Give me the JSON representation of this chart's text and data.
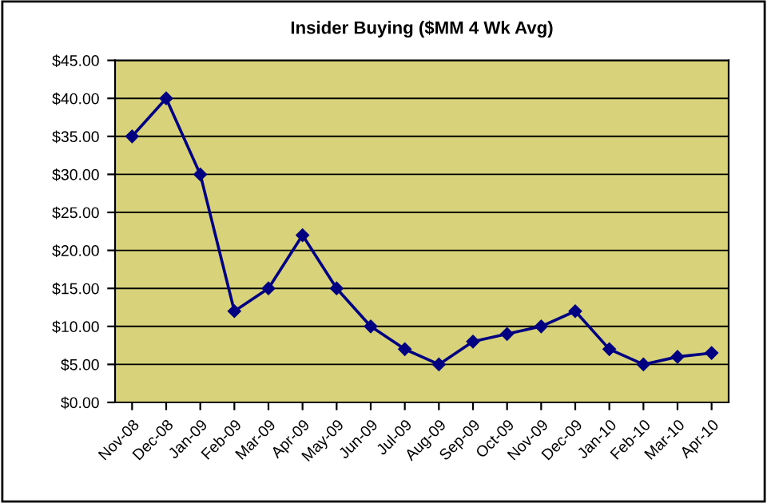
{
  "chart_data": {
    "type": "line",
    "title": "Insider Buying ($MM 4 Wk Avg)",
    "categories": [
      "Nov-08",
      "Dec-08",
      "Jan-09",
      "Feb-09",
      "Mar-09",
      "Apr-09",
      "May-09",
      "Jun-09",
      "Jul-09",
      "Aug-09",
      "Sep-09",
      "Oct-09",
      "Nov-09",
      "Dec-09",
      "Jan-10",
      "Feb-10",
      "Mar-10",
      "Apr-10"
    ],
    "series": [
      {
        "color": "#000080",
        "values": [
          35,
          40,
          30,
          12,
          15,
          22,
          15,
          10,
          7,
          5,
          8,
          9,
          10,
          12,
          7,
          5,
          6,
          6.5
        ]
      }
    ],
    "ylim": [
      0,
      45
    ],
    "yticks": [
      {
        "value": 0,
        "label": "$0.00"
      },
      {
        "value": 5,
        "label": "$5.00"
      },
      {
        "value": 10,
        "label": "$10.00"
      },
      {
        "value": 15,
        "label": "$15.00"
      },
      {
        "value": 20,
        "label": "$20.00"
      },
      {
        "value": 25,
        "label": "$25.00"
      },
      {
        "value": 30,
        "label": "$30.00"
      },
      {
        "value": 35,
        "label": "$35.00"
      },
      {
        "value": 40,
        "label": "$40.00"
      },
      {
        "value": 45,
        "label": "$45.00"
      }
    ],
    "grid": "y",
    "marker": "diamond",
    "line_style": "solid",
    "legend": false
  }
}
